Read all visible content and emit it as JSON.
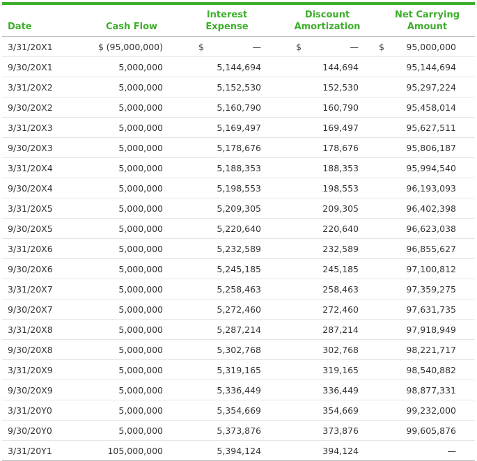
{
  "headers": {
    "date": "Date",
    "cash_flow": "Cash Flow",
    "interest_expense": "Interest Expense",
    "discount_amortization_line1": "Discount",
    "discount_amortization_line2": "Amortization",
    "net_carrying_line1": "Net Carrying",
    "net_carrying_line2": "Amount"
  },
  "first_row": {
    "date": "3/31/20X1",
    "cash_symbol": "$",
    "cash_flow": "(95,000,000)",
    "interest_symbol": "$",
    "interest_expense": "—",
    "discount_symbol": "$",
    "discount_amortization": "—",
    "net_symbol": "$",
    "net_carrying": "95,000,000"
  },
  "rows": [
    {
      "date": "9/30/20X1",
      "cash_flow": "5,000,000",
      "interest_expense": "5,144,694",
      "discount_amortization": "144,694",
      "net_carrying": "95,144,694"
    },
    {
      "date": "3/31/20X2",
      "cash_flow": "5,000,000",
      "interest_expense": "5,152,530",
      "discount_amortization": "152,530",
      "net_carrying": "95,297,224"
    },
    {
      "date": "9/30/20X2",
      "cash_flow": "5,000,000",
      "interest_expense": "5,160,790",
      "discount_amortization": "160,790",
      "net_carrying": "95,458,014"
    },
    {
      "date": "3/31/20X3",
      "cash_flow": "5,000,000",
      "interest_expense": "5,169,497",
      "discount_amortization": "169,497",
      "net_carrying": "95,627,511"
    },
    {
      "date": "9/30/20X3",
      "cash_flow": "5,000,000",
      "interest_expense": "5,178,676",
      "discount_amortization": "178,676",
      "net_carrying": "95,806,187"
    },
    {
      "date": "3/31/20X4",
      "cash_flow": "5,000,000",
      "interest_expense": "5,188,353",
      "discount_amortization": "188,353",
      "net_carrying": "95,994,540"
    },
    {
      "date": "9/30/20X4",
      "cash_flow": "5,000,000",
      "interest_expense": "5,198,553",
      "discount_amortization": "198,553",
      "net_carrying": "96,193,093"
    },
    {
      "date": "3/31/20X5",
      "cash_flow": "5,000,000",
      "interest_expense": "5,209,305",
      "discount_amortization": "209,305",
      "net_carrying": "96,402,398"
    },
    {
      "date": "9/30/20X5",
      "cash_flow": "5,000,000",
      "interest_expense": "5,220,640",
      "discount_amortization": "220,640",
      "net_carrying": "96,623,038"
    },
    {
      "date": "3/31/20X6",
      "cash_flow": "5,000,000",
      "interest_expense": "5,232,589",
      "discount_amortization": "232,589",
      "net_carrying": "96,855,627"
    },
    {
      "date": "9/30/20X6",
      "cash_flow": "5,000,000",
      "interest_expense": "5,245,185",
      "discount_amortization": "245,185",
      "net_carrying": "97,100,812"
    },
    {
      "date": "3/31/20X7",
      "cash_flow": "5,000,000",
      "interest_expense": "5,258,463",
      "discount_amortization": "258,463",
      "net_carrying": "97,359,275"
    },
    {
      "date": "9/30/20X7",
      "cash_flow": "5,000,000",
      "interest_expense": "5,272,460",
      "discount_amortization": "272,460",
      "net_carrying": "97,631,735"
    },
    {
      "date": "3/31/20X8",
      "cash_flow": "5,000,000",
      "interest_expense": "5,287,214",
      "discount_amortization": "287,214",
      "net_carrying": "97,918,949"
    },
    {
      "date": "9/30/20X8",
      "cash_flow": "5,000,000",
      "interest_expense": "5,302,768",
      "discount_amortization": "302,768",
      "net_carrying": "98,221,717"
    },
    {
      "date": "3/31/20X9",
      "cash_flow": "5,000,000",
      "interest_expense": "5,319,165",
      "discount_amortization": "319,165",
      "net_carrying": "98,540,882"
    },
    {
      "date": "9/30/20X9",
      "cash_flow": "5,000,000",
      "interest_expense": "5,336,449",
      "discount_amortization": "336,449",
      "net_carrying": "98,877,331"
    },
    {
      "date": "3/31/20Y0",
      "cash_flow": "5,000,000",
      "interest_expense": "5,354,669",
      "discount_amortization": "354,669",
      "net_carrying": "99,232,000"
    },
    {
      "date": "9/30/20Y0",
      "cash_flow": "5,000,000",
      "interest_expense": "5,373,876",
      "discount_amortization": "373,876",
      "net_carrying": "99,605,876"
    },
    {
      "date": "3/31/20Y1",
      "cash_flow": "105,000,000",
      "interest_expense": "5,394,124",
      "discount_amortization": "394,124",
      "net_carrying": "—"
    }
  ],
  "colors": {
    "accent": "#3dae2b",
    "text": "#333333"
  }
}
